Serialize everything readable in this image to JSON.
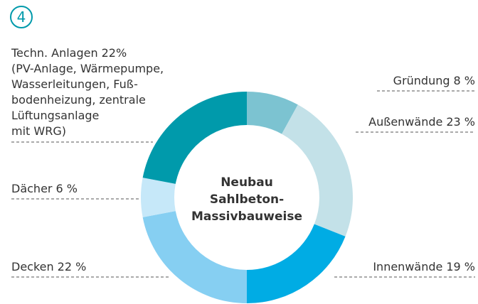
{
  "chart_data": {
    "type": "donut",
    "badge": "4",
    "center_text": [
      "Neubau",
      "Sahlbeton-",
      "Massivbauweise"
    ],
    "categories": [
      "Gründung",
      "Außenwände",
      "Innenwände",
      "Decken",
      "Dächer",
      "Techn. Anlagen"
    ],
    "values": [
      8,
      23,
      19,
      22,
      6,
      22
    ],
    "value_labels": [
      "8 %",
      "23 %",
      "19 %",
      "22 %",
      "6 %",
      "22%"
    ],
    "colors": [
      "#7cc3d1",
      "#c3e1e8",
      "#00ace4",
      "#86cff2",
      "#c6e8f9",
      "#009aab"
    ],
    "details": [
      "(PV-Anlage, Wärmepumpe,",
      "Wasserleitungen, Fuß-",
      "bodenheizung, zentrale",
      "Lüftungsanlage",
      "mit WRG)"
    ]
  }
}
